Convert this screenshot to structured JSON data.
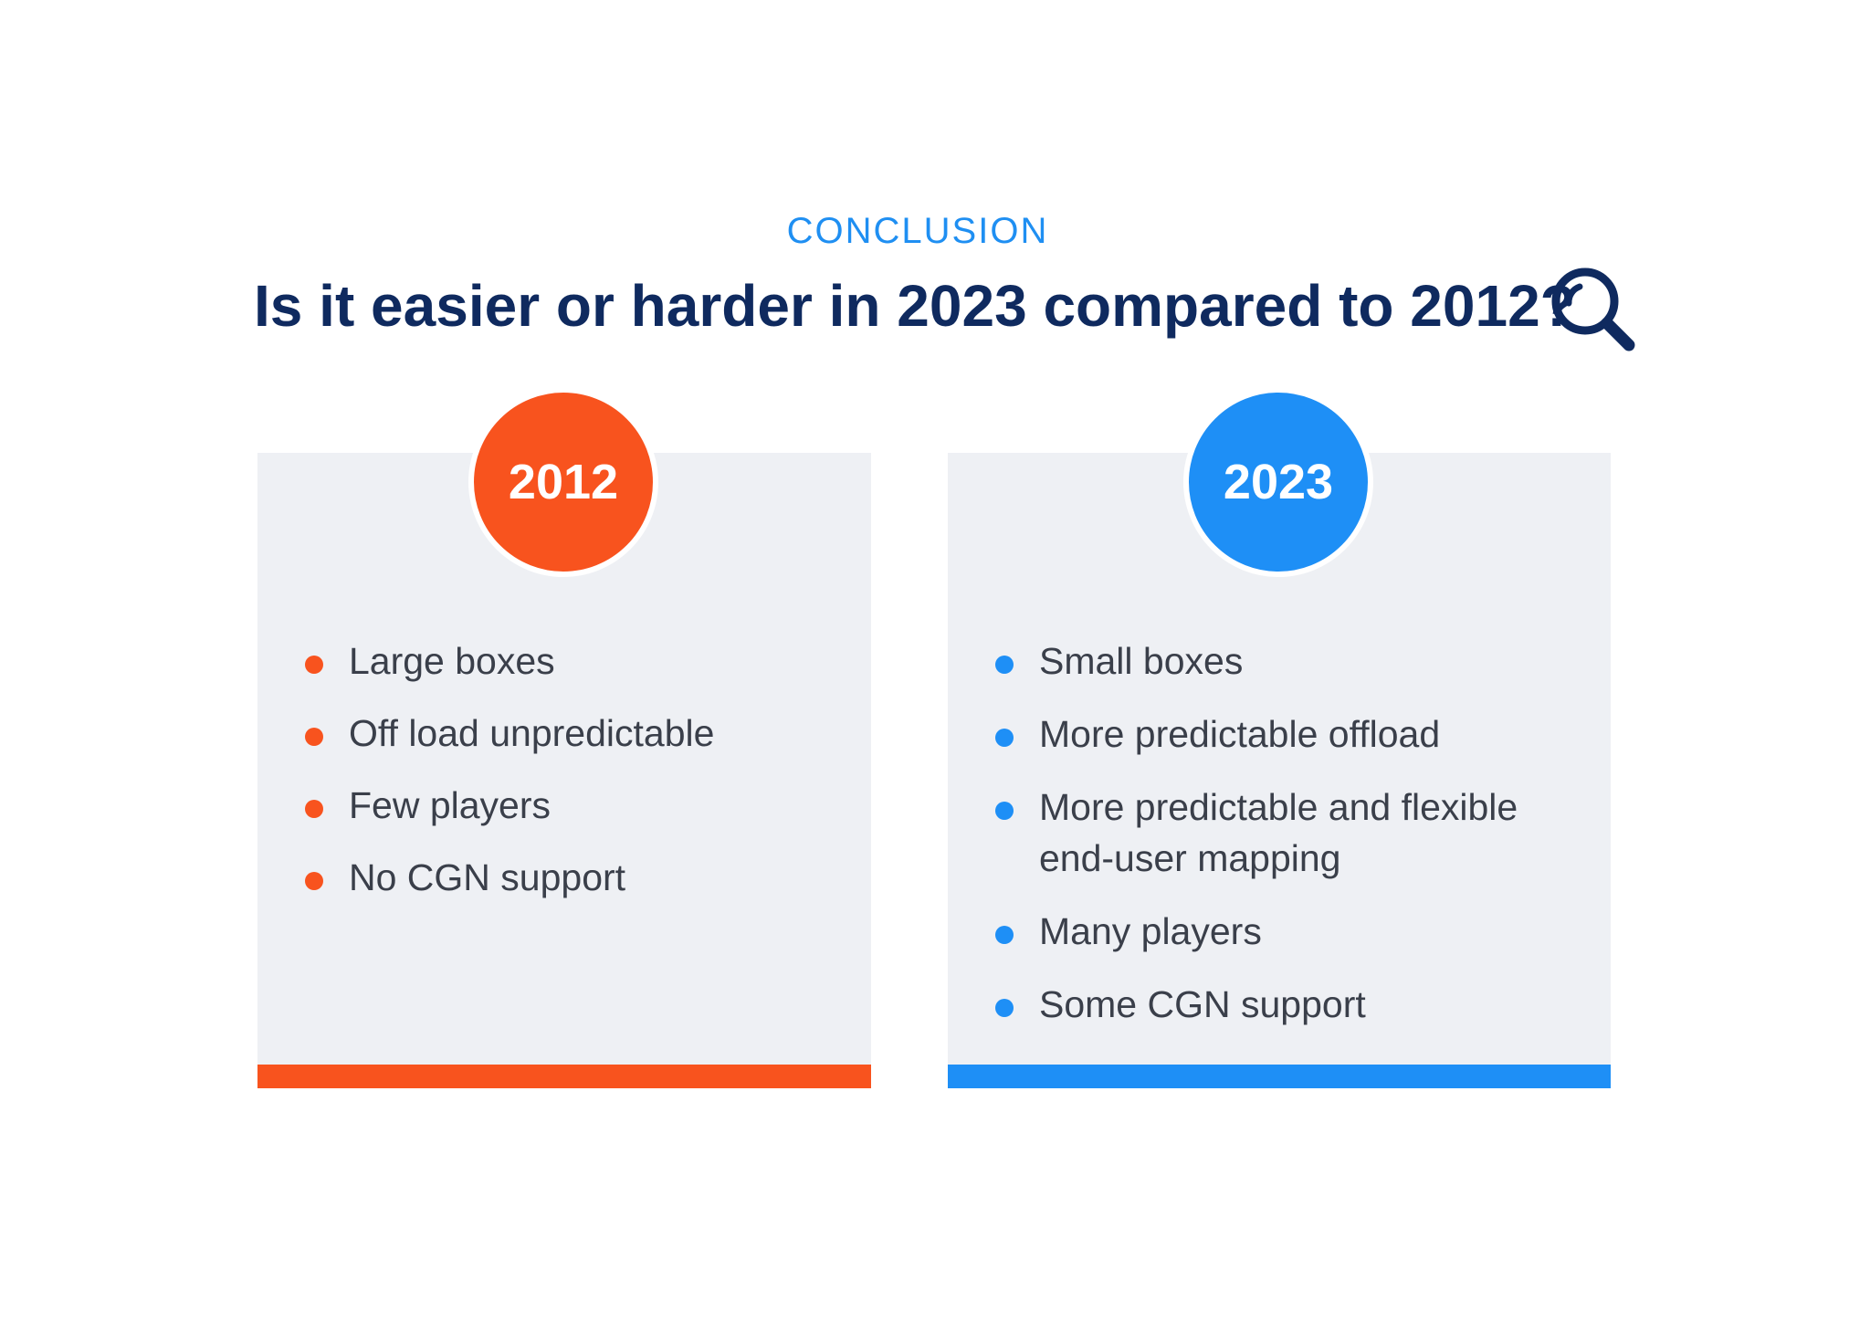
{
  "eyebrow": "CONCLUSION",
  "headline": "Is it easier or harder in 2023 compared to 2012?",
  "icons": {
    "headline_icon": "search-icon"
  },
  "colors": {
    "navy": "#0f2a5f",
    "eyebrow_blue": "#1f8ff2",
    "orange": "#f8531e",
    "blue": "#1e8ff6",
    "panel_bg": "#eef0f4",
    "bullet_text": "#3a3f4a"
  },
  "left": {
    "year": "2012",
    "items": [
      "Large boxes",
      "Off load unpredictable",
      "Few players",
      "No CGN support"
    ]
  },
  "right": {
    "year": "2023",
    "items": [
      "Small boxes",
      "More predictable offload",
      "More predictable and flexible end-user mapping",
      "Many players",
      "Some CGN support"
    ]
  }
}
